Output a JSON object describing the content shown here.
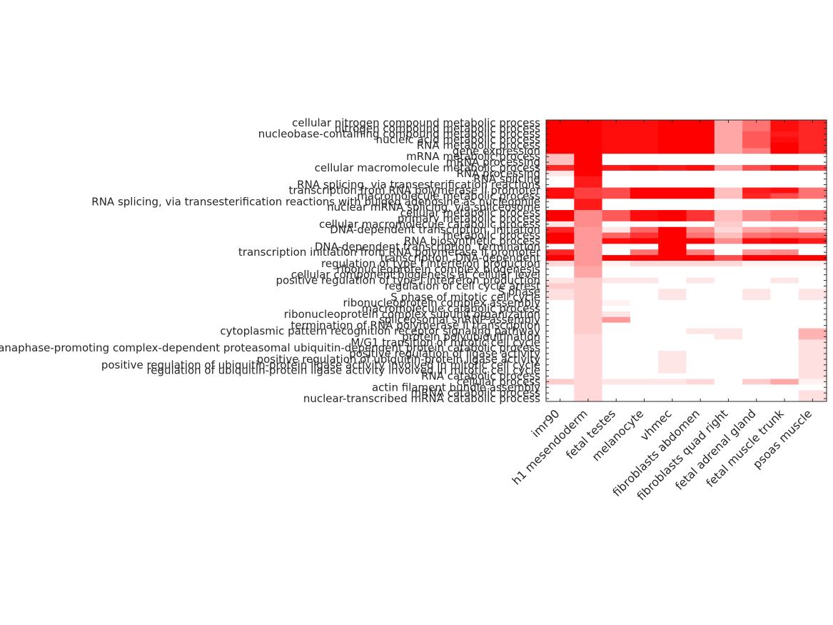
{
  "chart_data": {
    "type": "heatmap",
    "title": "",
    "xlabel": "",
    "ylabel": "",
    "colormap": {
      "low": "#ffffff",
      "high": "#ff0000"
    },
    "grid": false,
    "columns": [
      "imr90",
      "h1 mesendoderm",
      "fetal testes",
      "melanocyte",
      "vhmec",
      "fibroblasts abdomen",
      "fibroblasts quad right",
      "fetal adrenal gland",
      "fetal muscle trunk",
      "psoas muscle"
    ],
    "rows": [
      "cellular nitrogen compound metabolic process",
      "nitrogen compound metabolic process",
      "nucleobase-containing compound metabolic process",
      "nucleic acid metabolic process",
      "RNA metabolic process",
      "gene expression",
      "mRNA metabolic process",
      "mRNA processing",
      "cellular macromolecule metabolic process",
      "RNA processing",
      "RNA splicing",
      "RNA splicing, via transesterification reactions",
      "transcription from RNA polymerase II promoter",
      "macromolecule metabolic process",
      "RNA splicing, via transesterification reactions with bulged adenosine as nucleophile",
      "nuclear mRNA splicing, via spliceosome",
      "cellular metabolic process",
      "primary metabolic process",
      "cellular macromolecule catabolic process",
      "DNA-dependent transcription, initiation",
      "metabolic process",
      "RNA biosynthetic process",
      "DNA-dependent transcription, termination",
      "transcription initiation from RNA polymerase II promoter",
      "transcription, DNA-dependent",
      "regulation of type I interferon production",
      "ribonucleoprotein complex biogenesis",
      "cellular component biogenesis at cellular level",
      "positive regulation of type I interferon production",
      "regulation of cell cycle arrest",
      "S phase",
      "S phase of mitotic cell cycle",
      "ribonucleoprotein complex assembly",
      "macromolecule catabolic process",
      "ribonucleoprotein complex subunit organization",
      "spliceosomal snRNP assembly",
      "termination of RNA polymerase II transcription",
      "cytoplasmic pattern recognition receptor signaling pathway",
      "protein polyubiquitination",
      "M/G1 transition of mitotic cell cycle",
      "anaphase-promoting complex-dependent proteasomal ubiquitin-dependent protein catabolic process",
      "positive regulation of ligase activity",
      "positive regulation of ubiquitin-protein ligase activity",
      "positive regulation of ubiquitin-protein ligase activity involved in mitotic cell cycle",
      "regulation of ubiquitin-protein ligase activity involved in mitotic cell cycle",
      "RNA catabolic process",
      "cellular process",
      "actin filament bundle assembly",
      "mRNA catabolic process",
      "nuclear-transcribed mRNA catabolic process"
    ],
    "values": [
      [
        1.0,
        1.0,
        0.95,
        0.95,
        1.0,
        1.0,
        0.35,
        0.55,
        0.95,
        0.85
      ],
      [
        1.0,
        1.0,
        0.95,
        0.95,
        1.0,
        1.0,
        0.35,
        0.55,
        0.95,
        0.85
      ],
      [
        1.0,
        1.0,
        0.95,
        0.95,
        1.0,
        1.0,
        0.35,
        0.65,
        0.9,
        0.85
      ],
      [
        1.0,
        1.0,
        0.95,
        0.95,
        1.0,
        1.0,
        0.35,
        0.65,
        0.95,
        0.85
      ],
      [
        1.0,
        1.0,
        0.95,
        0.95,
        1.0,
        1.0,
        0.35,
        0.65,
        1.0,
        0.85
      ],
      [
        1.0,
        1.0,
        0.95,
        0.95,
        1.0,
        1.0,
        0.35,
        0.5,
        1.0,
        0.85
      ],
      [
        0.25,
        1.0,
        0.0,
        0.0,
        0.0,
        0.0,
        0.0,
        0.0,
        0.0,
        0.0
      ],
      [
        0.25,
        1.0,
        0.0,
        0.0,
        0.0,
        0.0,
        0.0,
        0.0,
        0.0,
        0.0
      ],
      [
        0.85,
        1.0,
        0.9,
        0.95,
        0.9,
        0.95,
        0.35,
        0.7,
        0.95,
        0.75
      ],
      [
        0.1,
        1.0,
        0.0,
        0.0,
        0.0,
        0.0,
        0.0,
        0.0,
        0.0,
        0.0
      ],
      [
        0.0,
        0.9,
        0.0,
        0.0,
        0.0,
        0.0,
        0.0,
        0.0,
        0.0,
        0.0
      ],
      [
        0.0,
        0.9,
        0.0,
        0.0,
        0.0,
        0.0,
        0.0,
        0.0,
        0.0,
        0.0
      ],
      [
        0.95,
        0.75,
        0.7,
        1.0,
        1.0,
        1.0,
        0.25,
        0.9,
        0.95,
        0.55
      ],
      [
        0.95,
        0.75,
        0.7,
        1.0,
        1.0,
        1.0,
        0.25,
        0.85,
        0.7,
        0.55
      ],
      [
        0.0,
        0.9,
        0.0,
        0.0,
        0.0,
        0.0,
        0.0,
        0.0,
        0.0,
        0.0
      ],
      [
        0.0,
        0.9,
        0.0,
        0.0,
        0.0,
        0.0,
        0.0,
        0.0,
        0.0,
        0.0
      ],
      [
        1.0,
        0.45,
        0.65,
        0.95,
        1.0,
        0.8,
        0.25,
        0.45,
        0.55,
        0.6
      ],
      [
        1.0,
        0.45,
        0.65,
        0.95,
        1.0,
        0.8,
        0.25,
        0.45,
        0.55,
        0.6
      ],
      [
        0.1,
        0.45,
        0.0,
        0.0,
        0.0,
        0.0,
        0.2,
        0.0,
        0.0,
        0.0
      ],
      [
        0.85,
        0.4,
        0.1,
        0.6,
        1.0,
        0.45,
        0.15,
        0.35,
        0.4,
        0.2
      ],
      [
        1.0,
        0.4,
        0.6,
        0.8,
        1.0,
        0.55,
        0.25,
        0.55,
        0.6,
        0.6
      ],
      [
        1.0,
        0.4,
        0.95,
        1.0,
        1.0,
        1.0,
        0.45,
        0.95,
        1.0,
        0.9
      ],
      [
        0.0,
        0.4,
        0.0,
        0.0,
        1.0,
        0.0,
        0.0,
        0.0,
        0.0,
        0.0
      ],
      [
        0.85,
        0.4,
        0.0,
        0.55,
        1.0,
        0.5,
        0.0,
        0.4,
        0.45,
        0.0
      ],
      [
        1.0,
        0.4,
        1.0,
        1.0,
        1.0,
        1.0,
        0.7,
        1.0,
        1.0,
        1.0
      ],
      [
        0.15,
        0.4,
        0.05,
        0.15,
        0.15,
        0.15,
        0.15,
        0.05,
        0.05,
        0.05
      ],
      [
        0.0,
        0.35,
        0.0,
        0.0,
        0.0,
        0.0,
        0.0,
        0.0,
        0.0,
        0.0
      ],
      [
        0.0,
        0.35,
        0.0,
        0.0,
        0.0,
        0.0,
        0.0,
        0.0,
        0.0,
        0.0
      ],
      [
        0.1,
        0.2,
        0.1,
        0.1,
        0.0,
        0.1,
        0.0,
        0.0,
        0.1,
        0.0
      ],
      [
        0.2,
        0.2,
        0.0,
        0.0,
        0.0,
        0.0,
        0.0,
        0.0,
        0.0,
        0.0
      ],
      [
        0.12,
        0.2,
        0.0,
        0.0,
        0.1,
        0.0,
        0.0,
        0.1,
        0.0,
        0.1
      ],
      [
        0.12,
        0.2,
        0.0,
        0.0,
        0.1,
        0.0,
        0.0,
        0.1,
        0.0,
        0.1
      ],
      [
        0.0,
        0.2,
        0.05,
        0.0,
        0.0,
        0.0,
        0.0,
        0.0,
        0.0,
        0.0
      ],
      [
        0.0,
        0.2,
        0.0,
        0.0,
        0.0,
        0.0,
        0.0,
        0.0,
        0.0,
        0.0
      ],
      [
        0.0,
        0.2,
        0.1,
        0.0,
        0.0,
        0.0,
        0.0,
        0.0,
        0.0,
        0.0
      ],
      [
        0.0,
        0.2,
        0.4,
        0.0,
        0.0,
        0.0,
        0.0,
        0.0,
        0.0,
        0.0
      ],
      [
        0.0,
        0.2,
        0.0,
        0.0,
        0.0,
        0.0,
        0.0,
        0.0,
        0.0,
        0.0
      ],
      [
        0.0,
        0.2,
        0.0,
        0.0,
        0.0,
        0.1,
        0.1,
        0.0,
        0.0,
        0.3
      ],
      [
        0.0,
        0.15,
        0.0,
        0.0,
        0.0,
        0.0,
        0.1,
        0.0,
        0.0,
        0.3
      ],
      [
        0.0,
        0.15,
        0.0,
        0.0,
        0.0,
        0.0,
        0.0,
        0.0,
        0.0,
        0.12
      ],
      [
        0.0,
        0.15,
        0.0,
        0.0,
        0.0,
        0.0,
        0.0,
        0.0,
        0.0,
        0.12
      ],
      [
        0.0,
        0.15,
        0.0,
        0.0,
        0.1,
        0.0,
        0.0,
        0.0,
        0.0,
        0.12
      ],
      [
        0.0,
        0.15,
        0.0,
        0.0,
        0.1,
        0.0,
        0.0,
        0.0,
        0.0,
        0.12
      ],
      [
        0.0,
        0.15,
        0.0,
        0.0,
        0.1,
        0.0,
        0.0,
        0.0,
        0.0,
        0.12
      ],
      [
        0.0,
        0.15,
        0.0,
        0.0,
        0.1,
        0.0,
        0.0,
        0.0,
        0.0,
        0.12
      ],
      [
        0.0,
        0.15,
        0.0,
        0.0,
        0.0,
        0.0,
        0.0,
        0.0,
        0.0,
        0.12
      ],
      [
        0.2,
        0.15,
        0.1,
        0.1,
        0.1,
        0.15,
        0.0,
        0.2,
        0.35,
        0.05
      ],
      [
        0.0,
        0.15,
        0.0,
        0.0,
        0.0,
        0.0,
        0.0,
        0.0,
        0.0,
        0.0
      ],
      [
        0.0,
        0.15,
        0.0,
        0.0,
        0.0,
        0.0,
        0.0,
        0.0,
        0.0,
        0.12
      ],
      [
        0.0,
        0.15,
        0.0,
        0.0,
        0.0,
        0.0,
        0.0,
        0.0,
        0.0,
        0.12
      ]
    ]
  }
}
